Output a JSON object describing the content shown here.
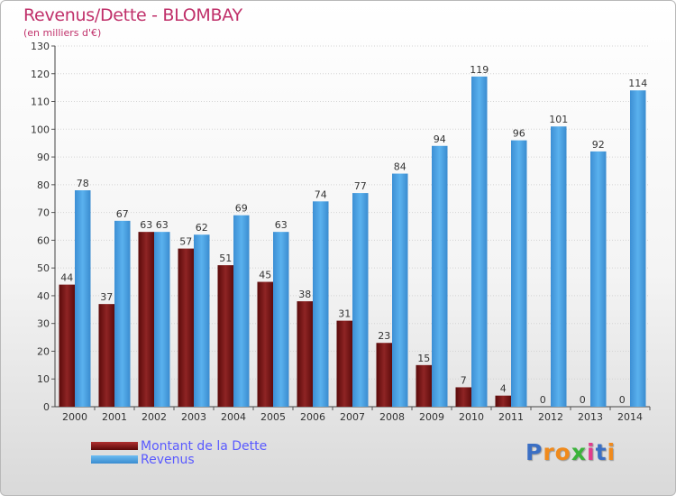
{
  "header": {
    "title": "Revenus/Dette - BLOMBAY",
    "subtitle": "(en milliers d'€)"
  },
  "chart_data": {
    "type": "bar",
    "categories": [
      "2000",
      "2001",
      "2002",
      "2003",
      "2004",
      "2005",
      "2006",
      "2007",
      "2008",
      "2009",
      "2010",
      "2011",
      "2012",
      "2013",
      "2014"
    ],
    "series": [
      {
        "name": "Montant de la Dette",
        "values": [
          44,
          37,
          63,
          57,
          51,
          45,
          38,
          31,
          23,
          15,
          7,
          4,
          0,
          0,
          0
        ],
        "color": "#8b1a1a"
      },
      {
        "name": "Revenus",
        "values": [
          78,
          67,
          63,
          62,
          69,
          63,
          74,
          77,
          84,
          94,
          119,
          96,
          101,
          92,
          114
        ],
        "color": "#4aa3e8"
      }
    ],
    "y_ticks": [
      "0",
      "10",
      "20",
      "30",
      "40",
      "50",
      "60",
      "70",
      "80",
      "90",
      "100",
      "110",
      "120",
      "130"
    ],
    "ylim": [
      0,
      130
    ],
    "grid": true,
    "legend_position": "bottom-left"
  },
  "logo": {
    "text": "Proxiti",
    "letters": [
      "P",
      "r",
      "o",
      "x",
      "i",
      "t",
      "i"
    ],
    "colors": [
      "#3b6fc4",
      "#f08a1c",
      "#f08a1c",
      "#3bb33b",
      "#e23b8d",
      "#3b6fc4",
      "#f08a1c"
    ]
  }
}
